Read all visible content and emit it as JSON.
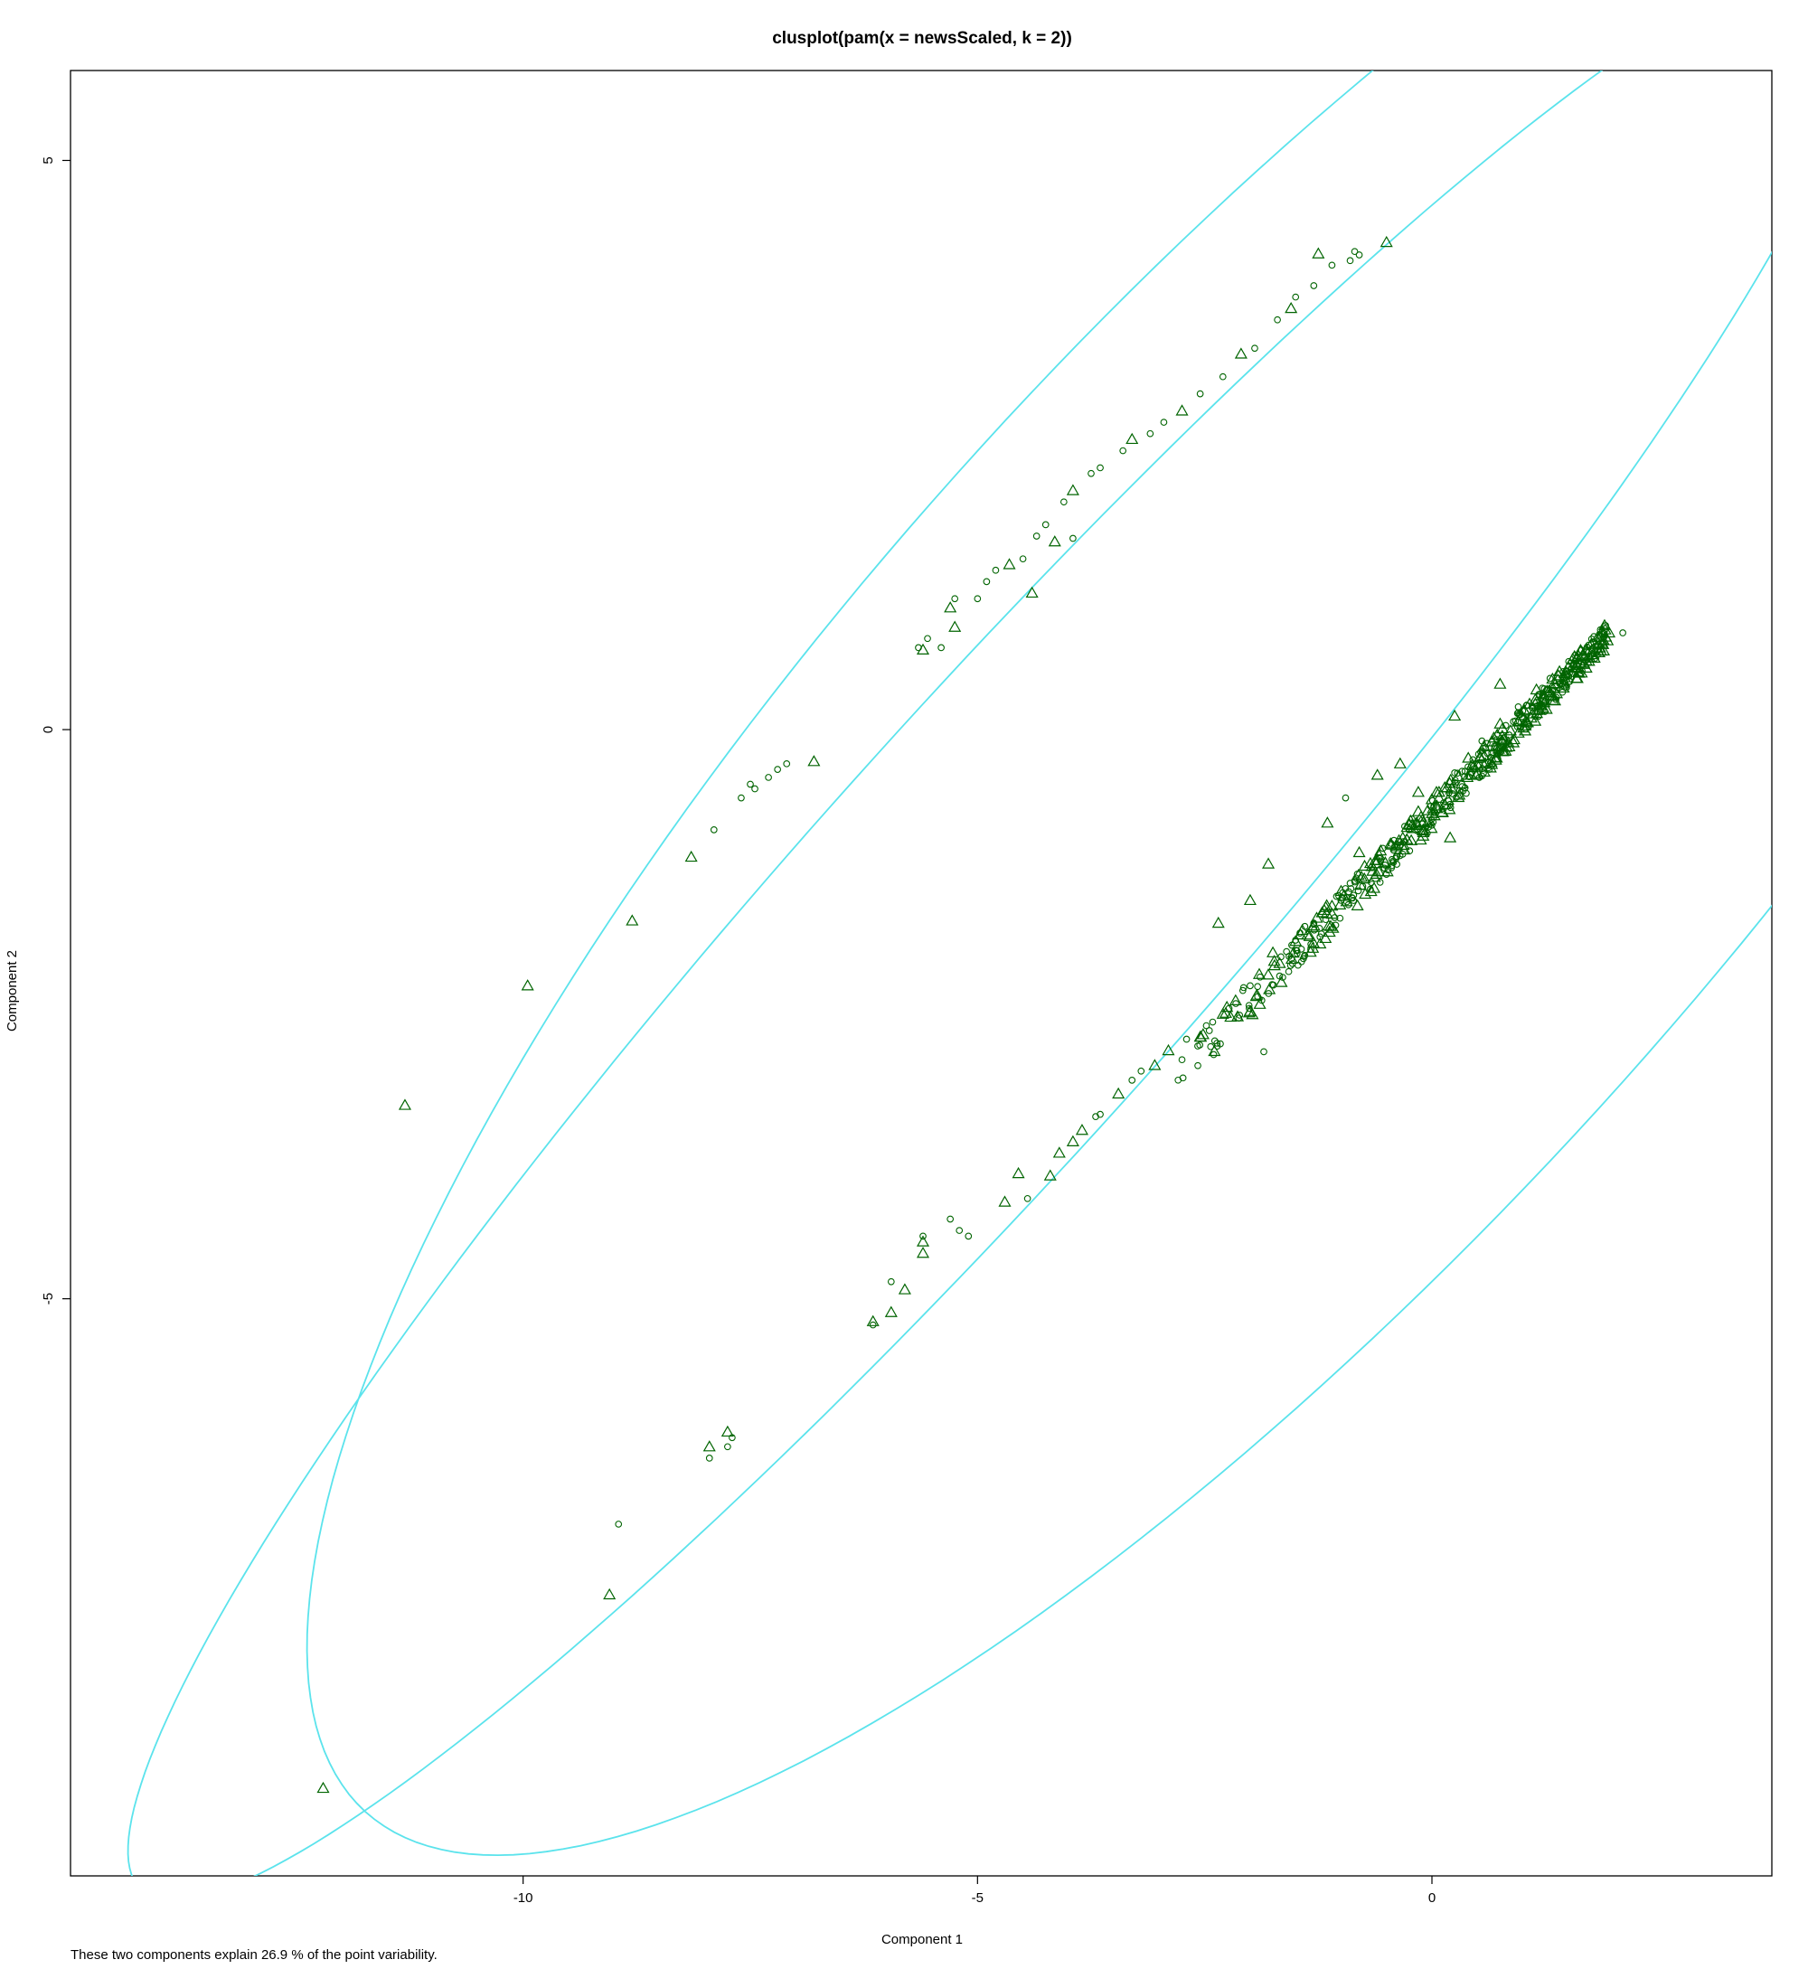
{
  "chart_data": {
    "type": "scatter",
    "title": "clusplot(pam(x = newsScaled, k = 2))",
    "xlabel": "Component 1",
    "ylabel": "Component 2",
    "caption": "These two components explain 26.9 % of the point variability.",
    "xlim": [
      -14.98,
      3.74
    ],
    "ylim": [
      -10.07,
      5.79
    ],
    "x_ticks": [
      -10,
      -5,
      0
    ],
    "y_ticks": [
      5,
      0,
      -5
    ],
    "colors": {
      "points": "#006400",
      "ellipse": "#5BE3EC",
      "frame": "#000000"
    },
    "clusters": [
      {
        "marker": "circle",
        "ellipse": {
          "center": [
            -1.56,
            -0.42
          ],
          "semi_axes": [
            13.68,
            4.42
          ],
          "angle_deg": 40.3
        }
      },
      {
        "marker": "triangle",
        "ellipse": {
          "center": [
            -4.77,
            -1.76
          ],
          "semi_axes": [
            12.66,
            2.04
          ],
          "angle_deg": 41.5
        }
      }
    ],
    "dense_band": {
      "from": [
        -2.9,
        -3.1
      ],
      "to": [
        1.95,
        0.85
      ]
    },
    "points": [
      [
        -0.5,
        4.28,
        2
      ],
      [
        -1.25,
        4.18,
        2
      ],
      [
        -0.85,
        4.2,
        1
      ],
      [
        -0.8,
        4.17,
        1
      ],
      [
        -0.9,
        4.12,
        1
      ],
      [
        -1.1,
        4.08,
        1
      ],
      [
        -1.3,
        3.9,
        1
      ],
      [
        -1.5,
        3.8,
        1
      ],
      [
        -1.7,
        3.6,
        1
      ],
      [
        -1.55,
        3.7,
        2
      ],
      [
        -1.95,
        3.35,
        1
      ],
      [
        -2.1,
        3.3,
        2
      ],
      [
        -2.3,
        3.1,
        1
      ],
      [
        -2.55,
        2.95,
        1
      ],
      [
        -2.75,
        2.8,
        2
      ],
      [
        -2.95,
        2.7,
        1
      ],
      [
        -3.1,
        2.6,
        1
      ],
      [
        -3.3,
        2.55,
        2
      ],
      [
        -3.4,
        2.45,
        1
      ],
      [
        -3.65,
        2.3,
        1
      ],
      [
        -3.75,
        2.25,
        1
      ],
      [
        -3.95,
        2.1,
        2
      ],
      [
        -4.05,
        2.0,
        1
      ],
      [
        -4.25,
        1.8,
        1
      ],
      [
        -4.35,
        1.7,
        1
      ],
      [
        -4.15,
        1.65,
        2
      ],
      [
        -3.95,
        1.68,
        1
      ],
      [
        -4.5,
        1.5,
        1
      ],
      [
        -4.65,
        1.45,
        2
      ],
      [
        -4.8,
        1.4,
        1
      ],
      [
        -4.9,
        1.3,
        1
      ],
      [
        -4.4,
        1.2,
        2
      ],
      [
        -5.0,
        1.15,
        1
      ],
      [
        -5.25,
        1.15,
        1
      ],
      [
        -5.3,
        1.07,
        2
      ],
      [
        -5.25,
        0.9,
        2
      ],
      [
        -5.55,
        0.8,
        1
      ],
      [
        -5.65,
        0.72,
        1
      ],
      [
        -5.6,
        0.7,
        2
      ],
      [
        -5.4,
        0.72,
        1
      ],
      [
        -6.8,
        -0.28,
        2
      ],
      [
        -7.1,
        -0.3,
        1
      ],
      [
        -7.2,
        -0.35,
        1
      ],
      [
        -7.3,
        -0.42,
        1
      ],
      [
        -7.5,
        -0.48,
        1
      ],
      [
        -7.45,
        -0.52,
        1
      ],
      [
        -7.6,
        -0.6,
        1
      ],
      [
        -7.9,
        -0.88,
        1
      ],
      [
        -8.15,
        -1.12,
        2
      ],
      [
        -8.8,
        -1.68,
        2
      ],
      [
        -9.95,
        -2.25,
        2
      ],
      [
        -11.3,
        -3.3,
        2
      ],
      [
        -12.2,
        -9.3,
        2
      ],
      [
        -9.05,
        -7.6,
        2
      ],
      [
        -8.95,
        -6.98,
        1
      ],
      [
        -7.95,
        -6.3,
        2
      ],
      [
        -7.95,
        -6.4,
        1
      ],
      [
        -7.75,
        -6.17,
        2
      ],
      [
        -7.75,
        -6.3,
        1
      ],
      [
        -7.7,
        -6.22,
        1
      ],
      [
        -6.15,
        -5.2,
        2
      ],
      [
        -6.15,
        -5.23,
        1
      ],
      [
        -5.95,
        -5.12,
        2
      ],
      [
        -5.8,
        -4.92,
        2
      ],
      [
        -5.95,
        -4.85,
        1
      ],
      [
        -5.6,
        -4.5,
        2
      ],
      [
        -5.6,
        -4.6,
        2
      ],
      [
        -5.6,
        -4.45,
        1
      ],
      [
        -5.3,
        -4.3,
        1
      ],
      [
        -5.2,
        -4.4,
        1
      ],
      [
        -5.1,
        -4.45,
        1
      ],
      [
        -4.7,
        -4.15,
        2
      ],
      [
        -4.55,
        -3.9,
        2
      ],
      [
        -4.45,
        -4.12,
        1
      ],
      [
        -4.2,
        -3.92,
        2
      ],
      [
        -4.1,
        -3.72,
        2
      ],
      [
        -3.95,
        -3.62,
        2
      ],
      [
        -3.85,
        -3.52,
        2
      ],
      [
        -3.7,
        -3.4,
        1
      ],
      [
        -3.65,
        -3.38,
        1
      ],
      [
        -3.45,
        -3.2,
        2
      ],
      [
        -3.3,
        -3.08,
        1
      ],
      [
        -3.2,
        -3.0,
        1
      ],
      [
        -3.05,
        -2.95,
        2
      ],
      [
        -2.9,
        -2.82,
        2
      ],
      [
        -2.7,
        -2.72,
        1
      ],
      [
        -2.75,
        -2.9,
        1
      ],
      [
        -2.55,
        -2.7,
        2
      ],
      [
        -2.3,
        -2.5,
        2
      ],
      [
        -2.0,
        -2.25,
        1
      ],
      [
        -1.9,
        -2.15,
        2
      ],
      [
        -1.75,
        -1.96,
        2
      ],
      [
        -1.6,
        -1.95,
        1
      ],
      [
        -1.5,
        -1.86,
        2
      ],
      [
        -1.3,
        -1.7,
        1
      ],
      [
        -1.1,
        -1.55,
        2
      ],
      [
        -1.0,
        -1.42,
        2
      ],
      [
        -0.9,
        -1.35,
        1
      ],
      [
        -0.8,
        -1.08,
        2
      ],
      [
        -0.6,
        -1.15,
        2
      ],
      [
        -0.45,
        -1.0,
        1
      ],
      [
        -0.3,
        -0.85,
        1
      ],
      [
        -0.15,
        -0.72,
        2
      ],
      [
        0.05,
        -0.55,
        2
      ],
      [
        0.25,
        -0.38,
        1
      ],
      [
        0.4,
        -0.25,
        2
      ],
      [
        0.55,
        -0.1,
        1
      ],
      [
        0.75,
        0.05,
        2
      ],
      [
        0.95,
        0.2,
        1
      ],
      [
        1.15,
        0.35,
        2
      ],
      [
        1.3,
        0.45,
        1
      ],
      [
        1.5,
        0.55,
        2
      ],
      [
        1.7,
        0.7,
        2
      ],
      [
        1.95,
        0.85,
        2
      ],
      [
        2.1,
        0.85,
        1
      ],
      [
        -0.35,
        -0.3,
        2
      ],
      [
        -0.15,
        -0.55,
        2
      ],
      [
        0.75,
        0.4,
        2
      ],
      [
        0.25,
        0.12,
        2
      ],
      [
        -0.6,
        -0.4,
        2
      ],
      [
        -0.95,
        -0.6,
        1
      ],
      [
        -1.15,
        -0.82,
        2
      ],
      [
        -1.8,
        -1.18,
        2
      ],
      [
        -2.0,
        -1.5,
        2
      ],
      [
        -1.5,
        -1.85,
        1
      ],
      [
        0.2,
        -0.95,
        2
      ],
      [
        0.85,
        -0.15,
        2
      ],
      [
        1.6,
        0.45,
        2
      ],
      [
        -1.85,
        -2.83,
        1
      ],
      [
        -2.35,
        -1.7,
        2
      ]
    ]
  }
}
